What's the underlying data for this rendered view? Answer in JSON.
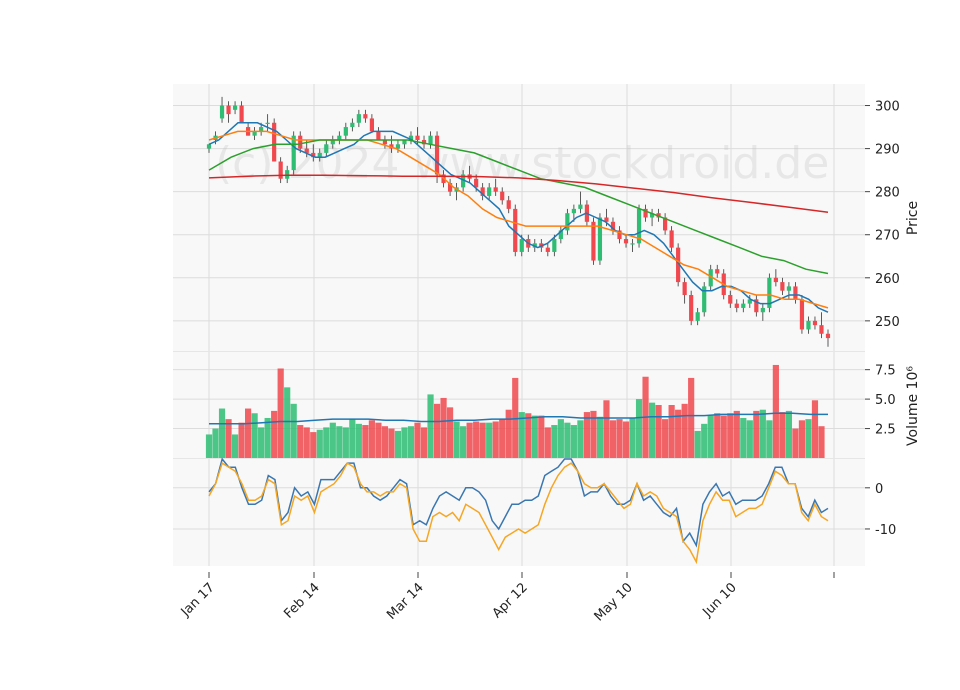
{
  "chart_data": [
    {
      "type": "candlestick",
      "ylabel": "Price",
      "ylim": [
        243,
        305
      ],
      "yticks": [
        250,
        260,
        270,
        280,
        290,
        300
      ],
      "grid": true,
      "watermark": "(c) 2024 www.stockdroid.de",
      "up_color": "#2ebd73",
      "down_color": "#f0484e",
      "ohlc": [
        [
          290,
          291,
          289,
          291
        ],
        [
          292,
          294,
          291,
          293
        ],
        [
          297,
          302,
          296,
          300
        ],
        [
          300,
          301,
          296,
          298
        ],
        [
          299,
          301,
          298,
          300
        ],
        [
          300,
          301,
          296,
          296
        ],
        [
          295,
          296,
          293,
          293
        ],
        [
          293,
          295,
          292,
          294
        ],
        [
          294,
          296,
          293,
          295
        ],
        [
          296,
          298,
          294,
          296
        ],
        [
          296,
          297,
          287,
          287
        ],
        [
          287,
          288,
          282,
          283
        ],
        [
          283,
          286,
          282,
          285
        ],
        [
          285,
          294,
          284,
          293
        ],
        [
          293,
          294,
          289,
          290
        ],
        [
          290,
          292,
          288,
          289
        ],
        [
          289,
          291,
          287,
          288
        ],
        [
          288,
          290,
          287,
          289
        ],
        [
          289,
          292,
          288,
          291
        ],
        [
          291,
          293,
          290,
          292
        ],
        [
          292,
          294,
          291,
          293
        ],
        [
          293,
          296,
          292,
          295
        ],
        [
          295,
          297,
          294,
          296
        ],
        [
          296,
          299,
          295,
          298
        ],
        [
          298,
          299,
          296,
          297
        ],
        [
          297,
          298,
          294,
          294
        ],
        [
          294,
          295,
          292,
          292
        ],
        [
          292,
          293,
          290,
          291
        ],
        [
          291,
          293,
          289,
          290
        ],
        [
          290,
          292,
          289,
          291
        ],
        [
          291,
          292,
          290,
          292
        ],
        [
          292,
          294,
          291,
          293
        ],
        [
          293,
          295,
          291,
          292
        ],
        [
          292,
          293,
          290,
          291
        ],
        [
          291,
          294,
          290,
          293
        ],
        [
          293,
          294,
          282,
          284
        ],
        [
          284,
          285,
          281,
          282
        ],
        [
          282,
          283,
          279,
          280
        ],
        [
          280,
          282,
          278,
          281
        ],
        [
          281,
          285,
          280,
          284
        ],
        [
          284,
          286,
          282,
          283
        ],
        [
          283,
          284,
          280,
          281
        ],
        [
          281,
          282,
          278,
          279
        ],
        [
          279,
          282,
          278,
          281
        ],
        [
          281,
          283,
          279,
          280
        ],
        [
          280,
          281,
          277,
          278
        ],
        [
          278,
          279,
          275,
          276
        ],
        [
          276,
          277,
          265,
          266
        ],
        [
          266,
          270,
          265,
          269
        ],
        [
          269,
          270,
          266,
          267
        ],
        [
          267,
          269,
          266,
          268
        ],
        [
          268,
          269,
          266,
          267
        ],
        [
          267,
          268,
          265,
          266
        ],
        [
          266,
          270,
          265,
          269
        ],
        [
          269,
          272,
          268,
          271
        ],
        [
          271,
          276,
          270,
          275
        ],
        [
          275,
          277,
          273,
          276
        ],
        [
          276,
          280,
          275,
          277
        ],
        [
          277,
          278,
          272,
          273
        ],
        [
          273,
          274,
          263,
          264
        ],
        [
          264,
          275,
          263,
          274
        ],
        [
          274,
          276,
          272,
          273
        ],
        [
          273,
          274,
          270,
          271
        ],
        [
          271,
          272,
          268,
          269
        ],
        [
          269,
          270,
          267,
          268
        ],
        [
          268,
          269,
          266,
          268
        ],
        [
          268,
          277,
          267,
          276
        ],
        [
          276,
          277,
          273,
          274
        ],
        [
          274,
          276,
          272,
          275
        ],
        [
          275,
          276,
          273,
          274
        ],
        [
          274,
          275,
          270,
          271
        ],
        [
          271,
          272,
          266,
          267
        ],
        [
          267,
          268,
          258,
          259
        ],
        [
          259,
          260,
          254,
          256
        ],
        [
          256,
          257,
          249,
          250
        ],
        [
          250,
          253,
          249,
          252
        ],
        [
          252,
          259,
          251,
          258
        ],
        [
          258,
          263,
          257,
          262
        ],
        [
          262,
          263,
          260,
          261
        ],
        [
          261,
          262,
          255,
          256
        ],
        [
          256,
          257,
          253,
          254
        ],
        [
          254,
          255,
          252,
          253
        ],
        [
          253,
          255,
          252,
          254
        ],
        [
          254,
          256,
          253,
          255
        ],
        [
          255,
          256,
          251,
          252
        ],
        [
          252,
          254,
          250,
          253
        ],
        [
          253,
          261,
          252,
          260
        ],
        [
          260,
          262,
          258,
          259
        ],
        [
          259,
          260,
          256,
          257
        ],
        [
          257,
          259,
          255,
          258
        ],
        [
          258,
          259,
          254,
          255
        ],
        [
          255,
          256,
          247,
          248
        ],
        [
          248,
          251,
          247,
          250
        ],
        [
          250,
          251,
          248,
          249
        ],
        [
          249,
          252,
          246,
          247
        ],
        [
          247,
          248,
          244,
          246
        ]
      ],
      "moving_averages": [
        {
          "name": "MA10",
          "color": "#1f77b4",
          "values": [
            291,
            292,
            294,
            296,
            296,
            296,
            295,
            294,
            292,
            290,
            289,
            288,
            288,
            289,
            290,
            291,
            293,
            294,
            294,
            294,
            293,
            292,
            290,
            288,
            286,
            284,
            283,
            282,
            280,
            278,
            276,
            272,
            270,
            268,
            267,
            268,
            270,
            272,
            274,
            275,
            274,
            273,
            271,
            270,
            270,
            271,
            270,
            268,
            265,
            262,
            259,
            257,
            257,
            258,
            258,
            257,
            255,
            254,
            254,
            255,
            256,
            256,
            255,
            253,
            252
          ]
        },
        {
          "name": "MA20",
          "color": "#ff7f0e",
          "values": [
            292,
            293,
            294,
            294,
            294,
            293,
            292,
            292,
            292,
            292,
            292,
            292,
            291,
            290,
            288,
            286,
            284,
            281,
            279,
            276,
            274,
            273,
            272,
            272,
            272,
            272,
            272,
            272,
            271,
            270,
            269,
            267,
            265,
            263,
            262,
            260,
            258,
            257,
            256,
            256,
            255,
            255,
            254,
            253
          ]
        },
        {
          "name": "MA50",
          "color": "#2ca02c",
          "values": [
            285,
            288,
            290,
            291,
            291,
            292,
            292,
            292,
            292,
            292,
            291,
            290,
            289,
            287,
            285,
            283,
            282,
            281,
            279,
            277,
            275,
            273,
            271,
            269,
            267,
            265,
            264,
            262,
            261
          ]
        },
        {
          "name": "MA200",
          "color": "#d62728",
          "values": [
            283.2,
            283.6,
            283.8,
            283.8,
            283.7,
            283.6,
            283.6,
            283.5,
            283.2,
            282.6,
            281.8,
            280.8,
            279.8,
            278.6,
            277.5,
            276.4,
            275.2
          ]
        }
      ]
    },
    {
      "type": "bar",
      "ylabel": "Volume  10⁶",
      "ylim": [
        0,
        9
      ],
      "yticks": [
        2.5,
        5.0,
        7.5
      ],
      "values": [
        2.0,
        2.5,
        4.2,
        3.3,
        2.0,
        3.0,
        4.2,
        3.8,
        2.6,
        3.4,
        4.0,
        7.6,
        6.0,
        4.6,
        2.8,
        2.6,
        2.2,
        2.4,
        2.6,
        3.0,
        2.7,
        2.6,
        3.3,
        2.9,
        2.8,
        3.2,
        3.0,
        2.7,
        2.5,
        2.3,
        2.6,
        2.7,
        3.0,
        2.6,
        5.4,
        4.6,
        5.1,
        4.3,
        3.1,
        2.7,
        3.0,
        3.1,
        3.0,
        3.0,
        3.1,
        3.3,
        4.1,
        6.8,
        3.9,
        3.8,
        3.6,
        3.6,
        2.6,
        2.8,
        3.3,
        3.0,
        2.8,
        3.2,
        3.9,
        4.0,
        3.5,
        4.9,
        3.2,
        3.3,
        3.1,
        3.4,
        5.0,
        6.9,
        4.7,
        4.5,
        3.3,
        4.5,
        4.1,
        4.6,
        6.8,
        2.3,
        2.9,
        3.6,
        3.8,
        3.6,
        3.8,
        4.0,
        3.4,
        3.2,
        4.0,
        4.1,
        3.2,
        7.9,
        3.9,
        4.0,
        2.5,
        3.2,
        3.3,
        4.9,
        2.7
      ],
      "series": [
        {
          "name": "Volume MA",
          "color": "#1f77b4",
          "values": [
            2.9,
            2.9,
            2.9,
            3.0,
            3.1,
            3.1,
            3.2,
            3.3,
            3.3,
            3.3,
            3.2,
            3.2,
            3.1,
            3.1,
            3.2,
            3.2,
            3.3,
            3.3,
            3.4,
            3.5,
            3.5,
            3.4,
            3.4,
            3.4,
            3.4,
            3.5,
            3.5,
            3.6,
            3.6,
            3.7,
            3.7,
            3.7,
            3.8,
            3.8,
            3.7,
            3.7
          ]
        }
      ]
    },
    {
      "type": "line",
      "ylim": [
        -19,
        7
      ],
      "yticks": [
        0,
        -10
      ],
      "series": [
        {
          "name": "MACD",
          "color": "#3a77b0",
          "values": [
            -1,
            1,
            7,
            5,
            5,
            0,
            -4,
            -4,
            -3,
            3,
            2,
            -8,
            -6,
            0,
            -2,
            -1,
            -4,
            2,
            2,
            2,
            4,
            6,
            6,
            0,
            0,
            -2,
            -3,
            -2,
            0,
            2,
            1,
            -9,
            -8,
            -9,
            -5,
            -2,
            -1,
            -2,
            -3,
            0,
            0,
            -1,
            -3,
            -8,
            -10,
            -7,
            -4,
            -4,
            -3,
            -3,
            -2,
            3,
            4,
            5,
            7,
            7,
            4,
            -2,
            -1,
            -1,
            1,
            -2,
            -4,
            -4,
            -3,
            1,
            -3,
            -2,
            -4,
            -6,
            -7,
            -5,
            -13,
            -11,
            -14,
            -4,
            -1,
            1,
            -2,
            -1,
            -4,
            -3,
            -3,
            -3,
            -2,
            1,
            5,
            5,
            1,
            1,
            -5,
            -7,
            -3,
            -6,
            -5
          ]
        },
        {
          "name": "Signal",
          "color": "#f5a623",
          "values": [
            -2,
            1,
            6,
            5,
            4,
            1,
            -3,
            -3,
            -2,
            2,
            1,
            -9,
            -8,
            -2,
            -3,
            -2,
            -6,
            -1,
            0,
            1,
            3,
            6,
            5,
            1,
            -1,
            -1,
            -2,
            -1,
            -1,
            1,
            0,
            -10,
            -13,
            -13,
            -7,
            -6,
            -7,
            -6,
            -8,
            -4,
            -5,
            -6,
            -9,
            -12,
            -15,
            -12,
            -11,
            -10,
            -11,
            -10,
            -9,
            -4,
            0,
            3,
            5,
            6,
            4,
            1,
            0,
            0,
            1,
            -1,
            -3,
            -5,
            -4,
            1,
            -2,
            -1,
            -2,
            -5,
            -6,
            -7,
            -13,
            -15,
            -18,
            -8,
            -4,
            -1,
            -3,
            -3,
            -7,
            -6,
            -5,
            -5,
            -4,
            0,
            4,
            3,
            1,
            1,
            -6,
            -8,
            -4,
            -7,
            -8
          ]
        }
      ]
    }
  ],
  "x_axis": {
    "tick_labels": [
      "Jan 17",
      "Feb 14",
      "Mar 14",
      "Apr 12",
      "May 10",
      "Jun 10",
      ""
    ]
  }
}
